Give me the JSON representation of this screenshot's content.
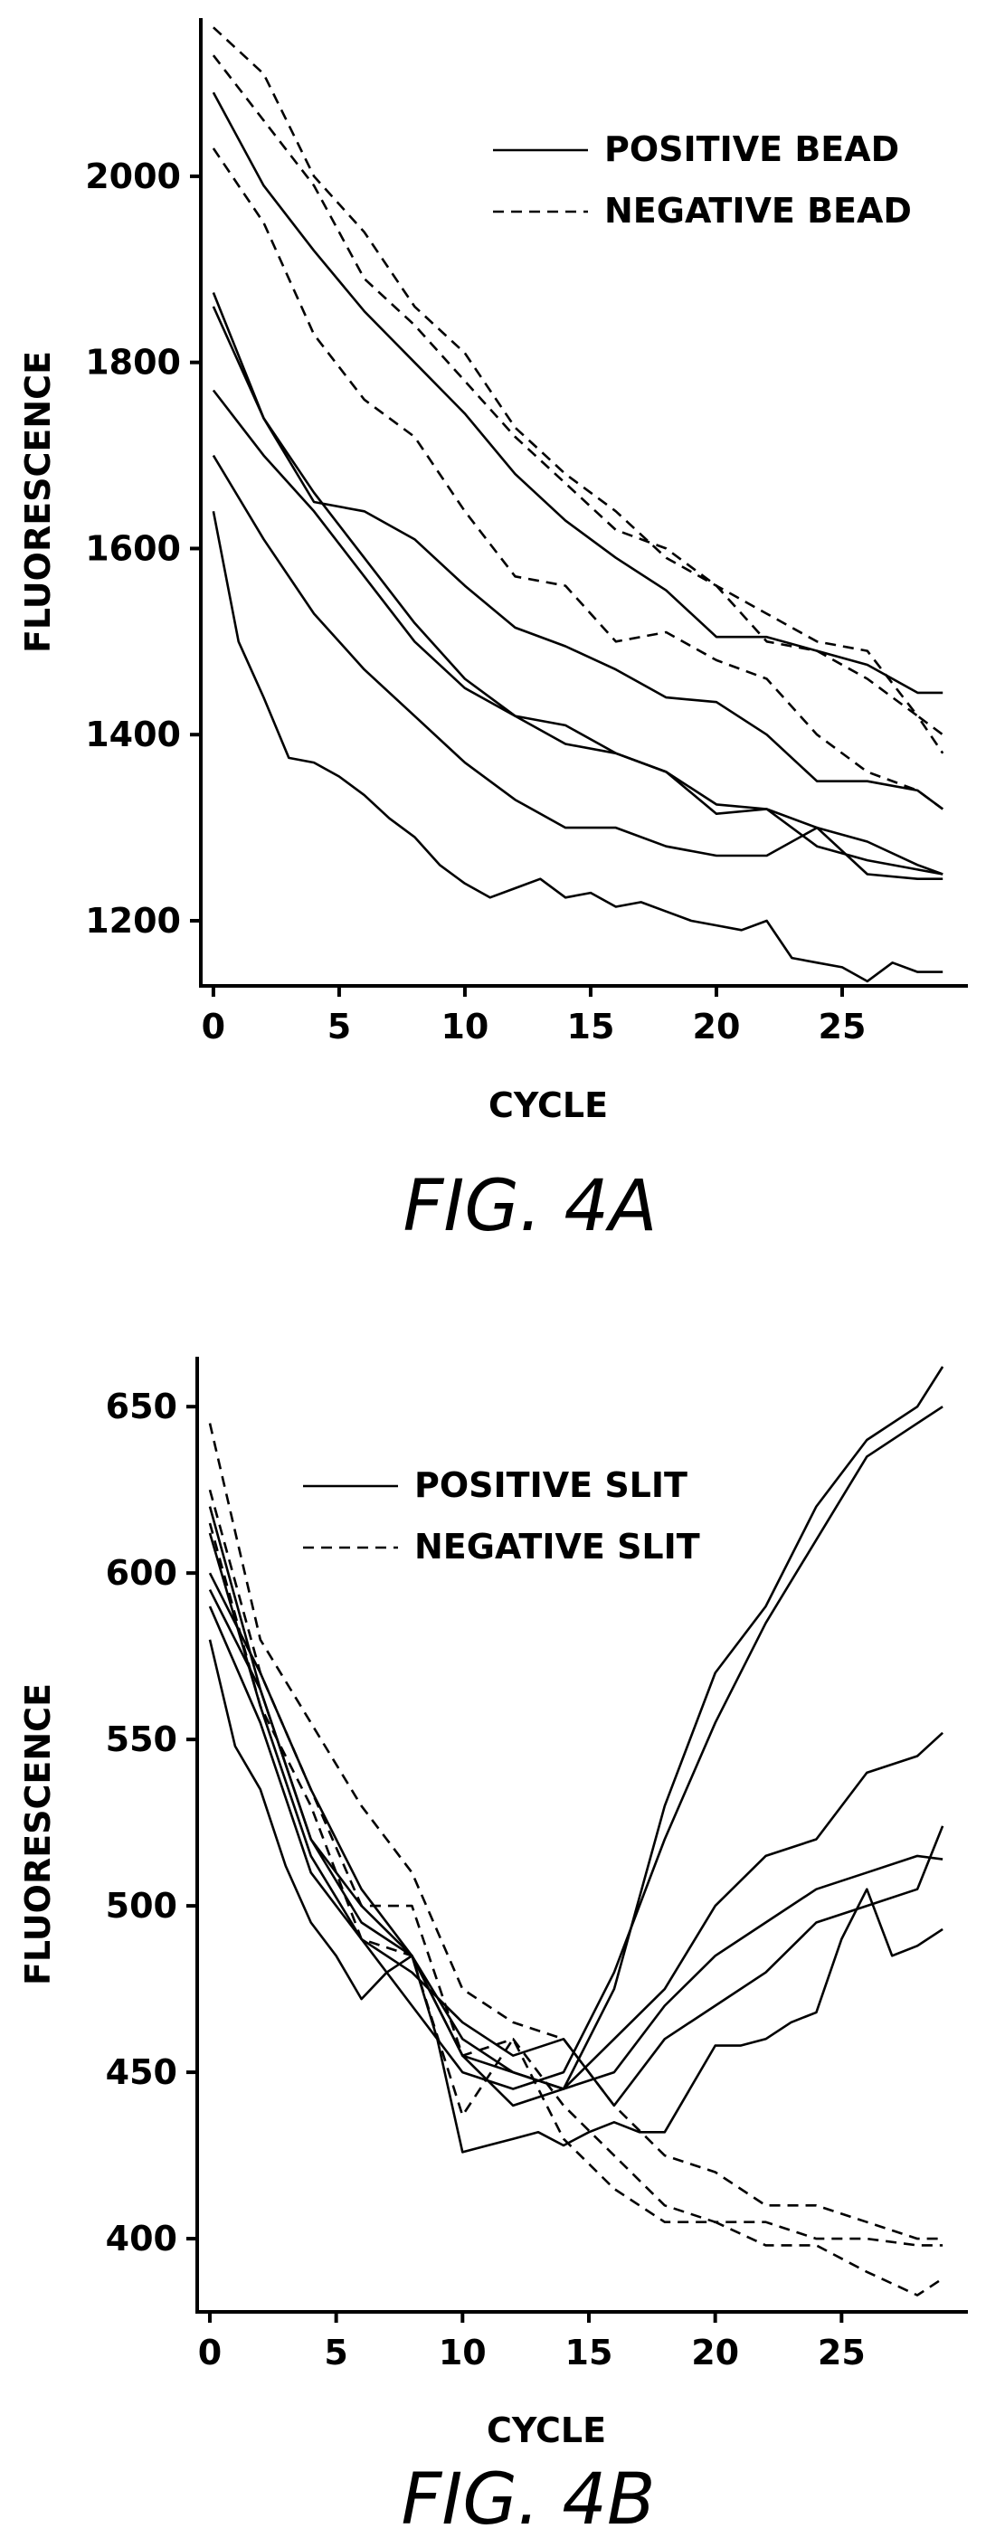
{
  "chart_data": [
    {
      "type": "line",
      "xlabel": "CYCLE",
      "ylabel": "FLUORESCENCE",
      "caption": "FIG. 4A",
      "xlim": [
        -0.5,
        30
      ],
      "ylim": [
        1130,
        2170
      ],
      "xticks": [
        0,
        5,
        10,
        15,
        20,
        25
      ],
      "yticks": [
        1200,
        1400,
        1600,
        1800,
        2000
      ],
      "legend_position": "top-right",
      "legend": [
        {
          "label": "POSITIVE BEAD",
          "style": "solid"
        },
        {
          "label": "NEGATIVE BEAD",
          "style": "dashed"
        }
      ],
      "series": [
        {
          "style": "solid",
          "x": [
            0,
            2,
            4,
            6,
            8,
            10,
            12,
            14,
            16,
            18,
            20,
            22,
            24,
            26,
            28,
            29
          ],
          "y": [
            2090,
            1990,
            1920,
            1855,
            1800,
            1745,
            1680,
            1630,
            1590,
            1555,
            1505,
            1505,
            1490,
            1475,
            1445,
            1445
          ]
        },
        {
          "style": "solid",
          "x": [
            0,
            2,
            4,
            6,
            8,
            10,
            12,
            14,
            16,
            18,
            20,
            22,
            24,
            26,
            28,
            29
          ],
          "y": [
            1875,
            1740,
            1650,
            1640,
            1610,
            1560,
            1515,
            1495,
            1470,
            1440,
            1435,
            1400,
            1350,
            1350,
            1340,
            1320
          ]
        },
        {
          "style": "solid",
          "x": [
            0,
            2,
            4,
            6,
            8,
            10,
            12,
            14,
            16,
            18,
            20,
            22,
            24,
            26,
            28,
            29
          ],
          "y": [
            1860,
            1740,
            1660,
            1590,
            1520,
            1460,
            1420,
            1410,
            1380,
            1360,
            1325,
            1320,
            1300,
            1285,
            1260,
            1250
          ]
        },
        {
          "style": "solid",
          "x": [
            0,
            2,
            4,
            6,
            8,
            10,
            12,
            14,
            16,
            18,
            20,
            22,
            24,
            26,
            28,
            29
          ],
          "y": [
            1770,
            1700,
            1640,
            1570,
            1500,
            1450,
            1420,
            1390,
            1380,
            1360,
            1315,
            1320,
            1280,
            1265,
            1255,
            1250
          ]
        },
        {
          "style": "solid",
          "x": [
            0,
            2,
            4,
            6,
            8,
            10,
            12,
            14,
            16,
            18,
            20,
            22,
            24,
            26,
            28,
            29
          ],
          "y": [
            1700,
            1610,
            1530,
            1470,
            1420,
            1370,
            1330,
            1300,
            1300,
            1280,
            1270,
            1270,
            1300,
            1250,
            1245,
            1245
          ]
        },
        {
          "style": "solid",
          "x": [
            0,
            1,
            2,
            3,
            4,
            5,
            6,
            7,
            8,
            9,
            10,
            11,
            12,
            13,
            14,
            15,
            16,
            17,
            18,
            19,
            20,
            21,
            22,
            23,
            24,
            25,
            26,
            27,
            28,
            29
          ],
          "y": [
            1640,
            1500,
            1440,
            1375,
            1370,
            1355,
            1335,
            1310,
            1290,
            1260,
            1240,
            1225,
            1235,
            1245,
            1225,
            1230,
            1215,
            1220,
            1210,
            1200,
            1195,
            1190,
            1200,
            1160,
            1155,
            1150,
            1135,
            1155,
            1145,
            1145
          ]
        },
        {
          "style": "dashed",
          "x": [
            0,
            2,
            4,
            6,
            8,
            10,
            12,
            14,
            16,
            18,
            20,
            22,
            24,
            26,
            28,
            29
          ],
          "y": [
            2160,
            2110,
            2000,
            1940,
            1860,
            1810,
            1730,
            1680,
            1640,
            1590,
            1560,
            1530,
            1500,
            1490,
            1420,
            1400
          ]
        },
        {
          "style": "dashed",
          "x": [
            0,
            2,
            4,
            6,
            8,
            10,
            12,
            14,
            16,
            18,
            20,
            22,
            24,
            26,
            28,
            29
          ],
          "y": [
            2130,
            2060,
            1990,
            1890,
            1840,
            1780,
            1720,
            1670,
            1620,
            1600,
            1560,
            1500,
            1490,
            1460,
            1420,
            1380
          ]
        },
        {
          "style": "dashed",
          "x": [
            0,
            2,
            4,
            6,
            8,
            10,
            12,
            14,
            16,
            18,
            20,
            22,
            24,
            26,
            28,
            29
          ],
          "y": [
            2030,
            1950,
            1830,
            1760,
            1720,
            1640,
            1570,
            1560,
            1500,
            1510,
            1480,
            1460,
            1400,
            1360,
            1340,
            1320
          ]
        }
      ]
    },
    {
      "type": "line",
      "xlabel": "CYCLE",
      "ylabel": "FLUORESCENCE",
      "caption": "FIG. 4B",
      "xlim": [
        -0.5,
        30
      ],
      "ylim": [
        378,
        665
      ],
      "xticks": [
        0,
        5,
        10,
        15,
        20,
        25
      ],
      "yticks": [
        400,
        450,
        500,
        550,
        600,
        650
      ],
      "legend_position": "top-left",
      "legend": [
        {
          "label": "POSITIVE SLIT",
          "style": "solid"
        },
        {
          "label": "NEGATIVE SLIT",
          "style": "dashed"
        }
      ],
      "series": [
        {
          "style": "solid",
          "x": [
            0,
            2,
            4,
            6,
            8,
            10,
            12,
            14,
            16,
            18,
            20,
            22,
            24,
            26,
            28,
            29
          ],
          "y": [
            620,
            565,
            520,
            495,
            485,
            455,
            440,
            445,
            475,
            530,
            570,
            590,
            620,
            640,
            650,
            662
          ]
        },
        {
          "style": "solid",
          "x": [
            0,
            2,
            4,
            6,
            8,
            10,
            12,
            14,
            16,
            18,
            20,
            22,
            24,
            26,
            28,
            29
          ],
          "y": [
            612,
            560,
            515,
            490,
            470,
            450,
            445,
            450,
            480,
            520,
            555,
            585,
            610,
            635,
            645,
            650
          ]
        },
        {
          "style": "solid",
          "x": [
            0,
            2,
            4,
            6,
            8,
            10,
            12,
            14,
            16,
            18,
            20,
            22,
            24,
            26,
            28,
            29
          ],
          "y": [
            600,
            570,
            535,
            505,
            485,
            455,
            450,
            445,
            460,
            475,
            500,
            515,
            520,
            540,
            545,
            552
          ]
        },
        {
          "style": "solid",
          "x": [
            0,
            2,
            4,
            6,
            8,
            10,
            12,
            14,
            16,
            18,
            20,
            22,
            24,
            26,
            28,
            29
          ],
          "y": [
            595,
            565,
            520,
            500,
            485,
            460,
            450,
            445,
            450,
            470,
            485,
            495,
            505,
            510,
            515,
            514
          ]
        },
        {
          "style": "solid",
          "x": [
            0,
            2,
            4,
            6,
            8,
            10,
            12,
            14,
            16,
            18,
            20,
            22,
            24,
            26,
            28,
            29
          ],
          "y": [
            590,
            555,
            510,
            490,
            480,
            465,
            455,
            460,
            440,
            460,
            470,
            480,
            495,
            500,
            505,
            524
          ]
        },
        {
          "style": "solid",
          "x": [
            0,
            1,
            2,
            3,
            4,
            5,
            6,
            7,
            8,
            9,
            10,
            11,
            12,
            13,
            14,
            15,
            16,
            17,
            18,
            19,
            20,
            21,
            22,
            23,
            24,
            25,
            26,
            27,
            28,
            29
          ],
          "y": [
            580,
            548,
            535,
            512,
            495,
            485,
            472,
            480,
            485,
            460,
            426,
            428,
            430,
            432,
            428,
            432,
            435,
            432,
            432,
            445,
            458,
            458,
            460,
            465,
            468,
            490,
            505,
            485,
            488,
            493
          ]
        },
        {
          "style": "dashed",
          "x": [
            0,
            2,
            4,
            6,
            8,
            10,
            12,
            14,
            16,
            18,
            20,
            22,
            24,
            26,
            28,
            29
          ],
          "y": [
            645,
            580,
            555,
            530,
            510,
            475,
            465,
            460,
            440,
            425,
            420,
            410,
            410,
            405,
            400,
            400
          ]
        },
        {
          "style": "dashed",
          "x": [
            0,
            2,
            4,
            6,
            8,
            10,
            12,
            14,
            16,
            18,
            20,
            22,
            24,
            26,
            28,
            29
          ],
          "y": [
            625,
            570,
            535,
            500,
            500,
            455,
            460,
            440,
            425,
            410,
            405,
            405,
            400,
            400,
            398,
            398
          ]
        },
        {
          "style": "dashed",
          "x": [
            0,
            2,
            4,
            6,
            8,
            10,
            12,
            14,
            16,
            18,
            20,
            22,
            24,
            26,
            28,
            29
          ],
          "y": [
            615,
            560,
            530,
            490,
            485,
            437,
            460,
            430,
            415,
            405,
            405,
            398,
            398,
            390,
            383,
            388
          ]
        }
      ]
    }
  ]
}
